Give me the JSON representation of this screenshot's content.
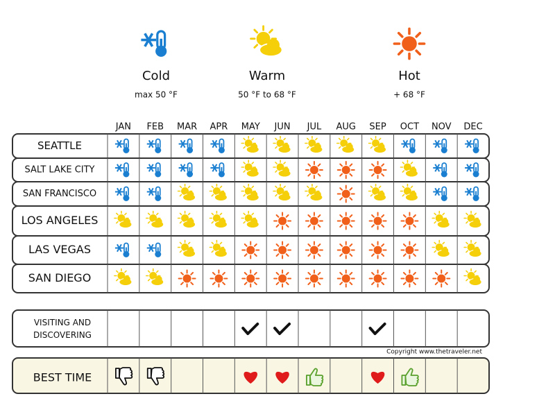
{
  "legend": [
    {
      "label": "Cold",
      "range": "max 50 °F"
    },
    {
      "label": "Warm",
      "range": "50 °F to 68 °F"
    },
    {
      "label": "Hot",
      "range": "+ 68 °F"
    }
  ],
  "months": [
    "JAN",
    "FEB",
    "MAR",
    "APR",
    "MAY",
    "JUN",
    "JUL",
    "AUG",
    "SEP",
    "OCT",
    "NOV",
    "DEC"
  ],
  "cities": [
    {
      "name": "SEATTLE",
      "weather": [
        "Cold",
        "Cold",
        "Cold",
        "Cold",
        "Warm",
        "Warm",
        "Warm",
        "Warm",
        "Warm",
        "Cold",
        "Cold",
        "Cold"
      ]
    },
    {
      "name": "SALT LAKE CITY",
      "weather": [
        "Cold",
        "Cold",
        "Cold",
        "Cold",
        "Warm",
        "Warm",
        "Hot",
        "Hot",
        "Hot",
        "Warm",
        "Cold",
        "Cold"
      ]
    },
    {
      "name": "SAN FRANCISCO",
      "weather": [
        "Cold",
        "Cold",
        "Warm",
        "Warm",
        "Warm",
        "Warm",
        "Warm",
        "Hot",
        "Warm",
        "Warm",
        "Cold",
        "Cold"
      ]
    },
    {
      "name": "LOS ANGELES",
      "weather": [
        "Warm",
        "Warm",
        "Warm",
        "Warm",
        "Warm",
        "Hot",
        "Hot",
        "Hot",
        "Hot",
        "Hot",
        "Warm",
        "Warm"
      ]
    },
    {
      "name": "LAS VEGAS",
      "weather": [
        "Cold",
        "Cold",
        "Warm",
        "Warm",
        "Hot",
        "Hot",
        "Hot",
        "Hot",
        "Hot",
        "Hot",
        "Warm",
        "Warm"
      ]
    },
    {
      "name": "SAN DIEGO",
      "weather": [
        "Warm",
        "Warm",
        "Hot",
        "Hot",
        "Hot",
        "Hot",
        "Hot",
        "Hot",
        "Hot",
        "Hot",
        "Hot",
        "Warm"
      ]
    }
  ],
  "visiting": {
    "label": "VISITING AND DISCOVERING",
    "marks": [
      false,
      false,
      false,
      false,
      true,
      true,
      false,
      false,
      true,
      false,
      false,
      false
    ]
  },
  "best_time": {
    "label": "BEST TIME",
    "marks": [
      "down",
      "down",
      null,
      null,
      "heart",
      "heart",
      "up",
      null,
      "heart",
      "up",
      null,
      null
    ]
  },
  "copyright": "Copyright www.thetraveler.net"
}
